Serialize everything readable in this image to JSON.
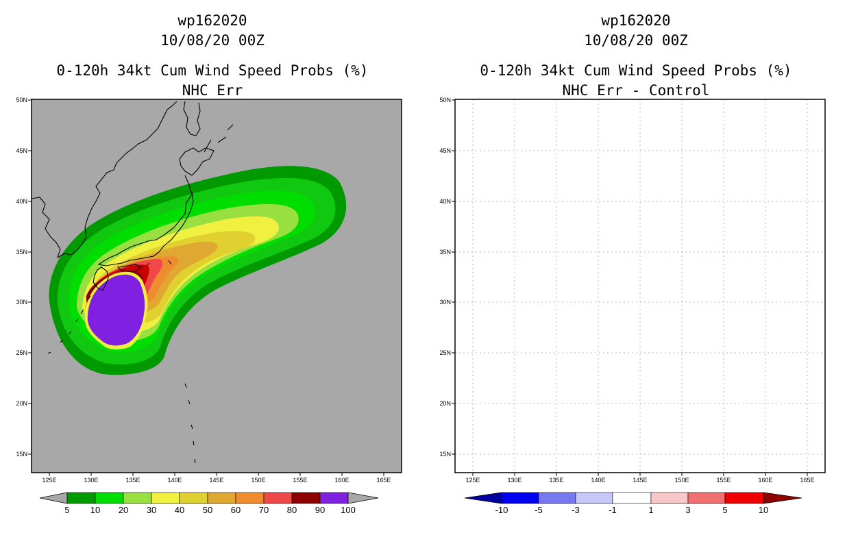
{
  "panels": [
    {
      "storm_id": "wp162020",
      "datetime": "10/08/20 00Z",
      "product": "0-120h 34kt Cum Wind Speed Probs (%)",
      "subtitle": "NHC Err",
      "background": "#a8a8a8",
      "colorbar": {
        "labels": [
          "5",
          "10",
          "20",
          "30",
          "40",
          "50",
          "60",
          "70",
          "80",
          "90",
          "100"
        ],
        "colors": [
          "#009a00",
          "#10c810",
          "#00dd00",
          "#98e040",
          "#f0f040",
          "#e0d030",
          "#e0a830",
          "#f08c30",
          "#f04848",
          "#c80000",
          "#8c0000",
          "#8020e0"
        ]
      }
    },
    {
      "storm_id": "wp162020",
      "datetime": "10/08/20 00Z",
      "product": "0-120h 34kt Cum Wind Speed Probs (%)",
      "subtitle": "NHC Err - Control",
      "background": "#ffffff",
      "colorbar": {
        "labels": [
          "-10",
          "-5",
          "-3",
          "-1",
          "1",
          "3",
          "5",
          "10"
        ],
        "colors": [
          "#0000a0",
          "#0000f0",
          "#7878f0",
          "#c8c8f8",
          "#ffffff",
          "#f8c8c8",
          "#f07070",
          "#f00000",
          "#900000"
        ]
      }
    }
  ],
  "latitude_labels": [
    "50N",
    "45N",
    "40N",
    "35N",
    "30N",
    "25N",
    "20N",
    "15N"
  ],
  "longitude_labels": [
    "125E",
    "130E",
    "135E",
    "140E",
    "145E",
    "150E",
    "155E",
    "160E",
    "165E"
  ]
}
